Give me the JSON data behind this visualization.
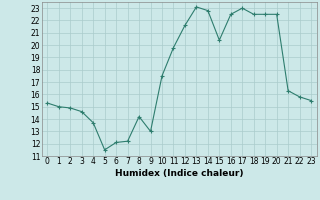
{
  "x": [
    0,
    1,
    2,
    3,
    4,
    5,
    6,
    7,
    8,
    9,
    10,
    11,
    12,
    13,
    14,
    15,
    16,
    17,
    18,
    19,
    20,
    21,
    22,
    23
  ],
  "y": [
    15.3,
    15.0,
    14.9,
    14.6,
    13.7,
    11.5,
    12.1,
    12.2,
    14.2,
    13.0,
    17.5,
    19.8,
    21.6,
    23.1,
    22.8,
    20.4,
    22.5,
    23.0,
    22.5,
    22.5,
    22.5,
    16.3,
    15.8,
    15.5
  ],
  "title": "",
  "xlabel": "Humidex (Indice chaleur)",
  "ylabel": "",
  "xlim": [
    -0.5,
    23.5
  ],
  "ylim": [
    11,
    23.5
  ],
  "yticks": [
    11,
    12,
    13,
    14,
    15,
    16,
    17,
    18,
    19,
    20,
    21,
    22,
    23
  ],
  "xticks": [
    0,
    1,
    2,
    3,
    4,
    5,
    6,
    7,
    8,
    9,
    10,
    11,
    12,
    13,
    14,
    15,
    16,
    17,
    18,
    19,
    20,
    21,
    22,
    23
  ],
  "line_color": "#2e7d6e",
  "marker": "+",
  "marker_size": 3,
  "bg_color": "#cce8e8",
  "grid_color": "#aacccc",
  "label_fontsize": 6.5,
  "tick_fontsize": 5.5
}
